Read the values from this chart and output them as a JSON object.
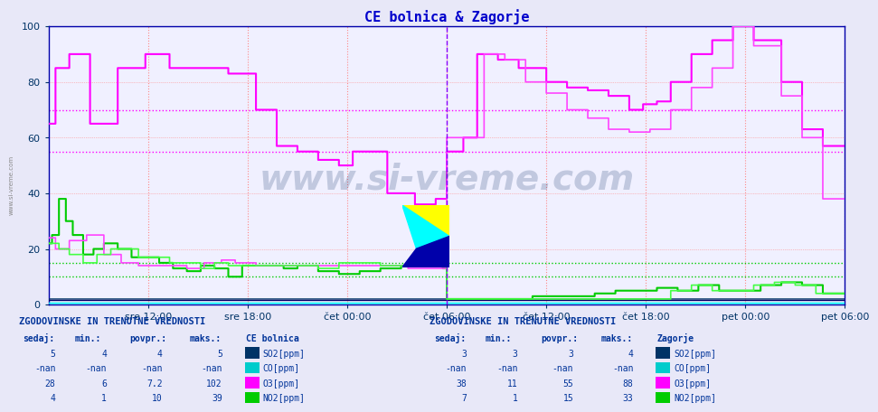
{
  "title": "CE bolnica & Zagorje",
  "title_color": "#0000cc",
  "bg_color": "#e8e8f8",
  "plot_bg_color": "#f0f0ff",
  "ylim": [
    0,
    100
  ],
  "hlines": [
    {
      "y": 70,
      "color": "#ff00ff",
      "style": ":",
      "lw": 1.0
    },
    {
      "y": 55,
      "color": "#ff00ff",
      "style": ":",
      "lw": 1.0
    },
    {
      "y": 15,
      "color": "#00cc00",
      "style": ":",
      "lw": 1.0
    },
    {
      "y": 10,
      "color": "#00cc00",
      "style": ":",
      "lw": 1.0
    }
  ],
  "vline_x": 576,
  "vline_color": "#8800ff",
  "vline_style": "--",
  "watermark": "www.si-vreme.com",
  "watermark_color": "#1a3a6e",
  "xtick_labels": [
    "sre 12:00",
    "sre 18:00",
    "čet 00:00",
    "čet 06:00",
    "čet 12:00",
    "čet 18:00",
    "pet 00:00",
    "pet 06:00"
  ],
  "xtick_positions": [
    144,
    288,
    432,
    576,
    720,
    864,
    1008,
    1152
  ],
  "n_points": 1153,
  "ytick_positions": [
    0,
    20,
    40,
    60,
    80,
    100
  ],
  "colors": {
    "SO2_CE": "#003366",
    "CO_CE": "#00cccc",
    "O3_CE": "#ff00ff",
    "NO2_CE": "#00cc00",
    "SO2_ZG": "#000066",
    "CO_ZG": "#00ffff",
    "O3_ZG": "#ff44ff",
    "NO2_ZG": "#44ff44"
  },
  "table1_title": "ZGODOVINSKE IN TRENUTNE VREDNOSTI",
  "table1_header": [
    "sedaj:",
    "min.:",
    "povpr.:",
    "maks.:",
    "CE bolnica"
  ],
  "table1_rows": [
    [
      "5",
      "4",
      "4",
      "5",
      "SO2[ppm]",
      "#003366"
    ],
    [
      "-nan",
      "-nan",
      "-nan",
      "-nan",
      "CO[ppm]",
      "#00cccc"
    ],
    [
      "28",
      "6",
      "7.2",
      "102",
      "O3[ppm]",
      "#ff00ff"
    ],
    [
      "4",
      "1",
      "10",
      "39",
      "NO2[ppm]",
      "#00cc00"
    ]
  ],
  "table2_title": "ZGODOVINSKE IN TRENUTNE VREDNOSTI",
  "table2_header": [
    "sedaj:",
    "min.:",
    "povpr.:",
    "maks.:",
    "Zagorje"
  ],
  "table2_rows": [
    [
      "3",
      "3",
      "3",
      "4",
      "SO2[ppm]",
      "#003366"
    ],
    [
      "-nan",
      "-nan",
      "-nan",
      "-nan",
      "CO[ppm]",
      "#00cccc"
    ],
    [
      "38",
      "11",
      "55",
      "88",
      "O3[ppm]",
      "#ff00ff"
    ],
    [
      "7",
      "1",
      "15",
      "33",
      "NO2[ppm]",
      "#00cc00"
    ]
  ]
}
